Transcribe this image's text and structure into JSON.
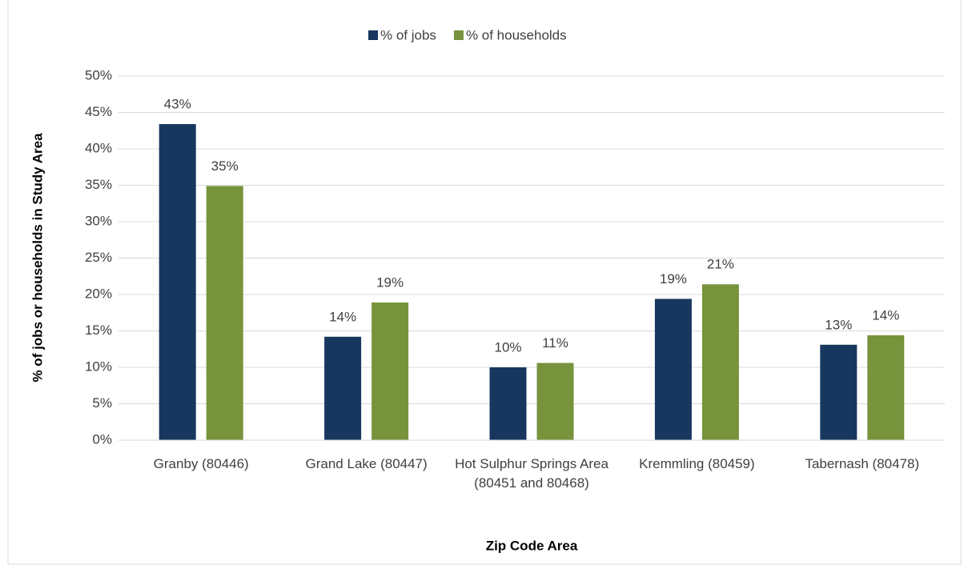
{
  "chart_data": {
    "type": "bar",
    "x_label": "Zip Code Area",
    "y_label": "% of jobs or households in Study Area",
    "categories": [
      "Granby (80446)",
      "Grand Lake (80447)",
      "Hot Sulphur Springs Area (80451 and 80468)",
      "Kremmling (80459)",
      "Tabernash (80478)"
    ],
    "series": [
      {
        "name": "% of jobs",
        "color": "#17375e",
        "values": [
          43.4,
          14.2,
          10.0,
          19.4,
          13.1
        ],
        "value_labels": [
          "43%",
          "14%",
          "10%",
          "19%",
          "13%"
        ]
      },
      {
        "name": "% of households",
        "color": "#77933c",
        "values": [
          34.9,
          18.9,
          10.6,
          21.4,
          14.4
        ],
        "value_labels": [
          "35%",
          "19%",
          "11%",
          "21%",
          "14%"
        ]
      }
    ],
    "ylim": [
      0,
      50
    ],
    "yticks": [
      {
        "value": 0,
        "label": "0%"
      },
      {
        "value": 5,
        "label": "5%"
      },
      {
        "value": 10,
        "label": "10%"
      },
      {
        "value": 15,
        "label": "15%"
      },
      {
        "value": 20,
        "label": "20%"
      },
      {
        "value": 25,
        "label": "25%"
      },
      {
        "value": 30,
        "label": "30%"
      },
      {
        "value": 35,
        "label": "35%"
      },
      {
        "value": 40,
        "label": "40%"
      },
      {
        "value": 45,
        "label": "45%"
      },
      {
        "value": 50,
        "label": "50%"
      }
    ],
    "grid": true,
    "legend": "top"
  }
}
